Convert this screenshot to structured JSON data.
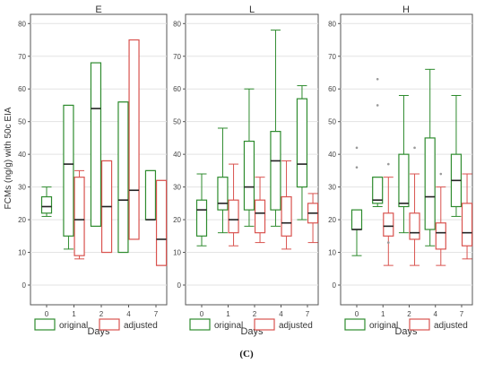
{
  "figure": {
    "caption": "(C)",
    "ylabel": "FCMs (ng/g) with 50c EIA",
    "xlabel": "Days",
    "colors": {
      "original": "#2e8b2e",
      "adjusted": "#d9534f"
    }
  },
  "chart_data": [
    {
      "type": "box",
      "title": "E",
      "xlabel": "Days",
      "ylabel": "FCMs (ng/g) with 50c EIA",
      "categories": [
        "0",
        "1",
        "2",
        "4",
        "7"
      ],
      "ylim": [
        0,
        82
      ],
      "yticks": [
        0,
        10,
        20,
        30,
        40,
        50,
        60,
        70,
        80
      ],
      "legend": [
        "original",
        "adjusted"
      ],
      "series": [
        {
          "name": "original",
          "boxes": [
            {
              "day": "0",
              "whislo": 21,
              "q1": 22,
              "med": 24,
              "q3": 27,
              "whishi": 30,
              "fliers": []
            },
            {
              "day": "1",
              "whislo": 11,
              "q1": 15,
              "med": 37,
              "q3": 55,
              "whishi": 55,
              "fliers": []
            },
            {
              "day": "2",
              "whislo": 18,
              "q1": 18,
              "med": 54,
              "q3": 68,
              "whishi": 68,
              "fliers": []
            },
            {
              "day": "4",
              "whislo": 10,
              "q1": 10,
              "med": 26,
              "q3": 56,
              "whishi": 56,
              "fliers": []
            },
            {
              "day": "7",
              "whislo": 20,
              "q1": 20,
              "med": 20,
              "q3": 35,
              "whishi": 35,
              "fliers": []
            }
          ]
        },
        {
          "name": "adjusted",
          "boxes": [
            {
              "day": "1",
              "whislo": 8,
              "q1": 9,
              "med": 20,
              "q3": 33,
              "whishi": 35,
              "fliers": []
            },
            {
              "day": "2",
              "whislo": 10,
              "q1": 10,
              "med": 24,
              "q3": 38,
              "whishi": 38,
              "fliers": []
            },
            {
              "day": "4",
              "whislo": 14,
              "q1": 14,
              "med": 29,
              "q3": 75,
              "whishi": 75,
              "fliers": []
            },
            {
              "day": "7",
              "whislo": 6,
              "q1": 6,
              "med": 14,
              "q3": 32,
              "whishi": 32,
              "fliers": []
            }
          ]
        }
      ]
    },
    {
      "type": "box",
      "title": "L",
      "xlabel": "Days",
      "categories": [
        "0",
        "1",
        "2",
        "4",
        "7"
      ],
      "ylim": [
        0,
        82
      ],
      "yticks": [
        0,
        10,
        20,
        30,
        40,
        50,
        60,
        70,
        80
      ],
      "legend": [
        "original",
        "adjusted"
      ],
      "series": [
        {
          "name": "original",
          "boxes": [
            {
              "day": "0",
              "whislo": 12,
              "q1": 15,
              "med": 23,
              "q3": 26,
              "whishi": 34,
              "fliers": []
            },
            {
              "day": "1",
              "whislo": 16,
              "q1": 23,
              "med": 25,
              "q3": 33,
              "whishi": 48,
              "fliers": []
            },
            {
              "day": "2",
              "whislo": 18,
              "q1": 23,
              "med": 30,
              "q3": 44,
              "whishi": 60,
              "fliers": []
            },
            {
              "day": "4",
              "whislo": 18,
              "q1": 23,
              "med": 38,
              "q3": 47,
              "whishi": 78,
              "fliers": []
            },
            {
              "day": "7",
              "whislo": 20,
              "q1": 30,
              "med": 37,
              "q3": 57,
              "whishi": 61,
              "fliers": []
            }
          ]
        },
        {
          "name": "adjusted",
          "boxes": [
            {
              "day": "1",
              "whislo": 12,
              "q1": 16,
              "med": 20,
              "q3": 26,
              "whishi": 37,
              "fliers": []
            },
            {
              "day": "2",
              "whislo": 13,
              "q1": 16,
              "med": 22,
              "q3": 26,
              "whishi": 33,
              "fliers": []
            },
            {
              "day": "4",
              "whislo": 11,
              "q1": 15,
              "med": 19,
              "q3": 27,
              "whishi": 38,
              "fliers": []
            },
            {
              "day": "7",
              "whislo": 13,
              "q1": 19,
              "med": 22,
              "q3": 25,
              "whishi": 28,
              "fliers": []
            }
          ]
        }
      ]
    },
    {
      "type": "box",
      "title": "H",
      "xlabel": "Days",
      "categories": [
        "0",
        "1",
        "2",
        "4",
        "7"
      ],
      "ylim": [
        0,
        82
      ],
      "yticks": [
        0,
        10,
        20,
        30,
        40,
        50,
        60,
        70,
        80
      ],
      "legend": [
        "original",
        "adjusted"
      ],
      "series": [
        {
          "name": "original",
          "boxes": [
            {
              "day": "0",
              "whislo": 9,
              "q1": 17,
              "med": 17,
              "q3": 23,
              "whishi": 23,
              "fliers": [
                36,
                42
              ]
            },
            {
              "day": "1",
              "whislo": 24,
              "q1": 25,
              "med": 26,
              "q3": 33,
              "whishi": 33,
              "fliers": [
                55,
                63
              ]
            },
            {
              "day": "2",
              "whislo": 16,
              "q1": 24,
              "med": 25,
              "q3": 40,
              "whishi": 58,
              "fliers": []
            },
            {
              "day": "4",
              "whislo": 12,
              "q1": 17,
              "med": 27,
              "q3": 45,
              "whishi": 66,
              "fliers": []
            },
            {
              "day": "7",
              "whislo": 21,
              "q1": 24,
              "med": 32,
              "q3": 40,
              "whishi": 58,
              "fliers": []
            }
          ]
        },
        {
          "name": "adjusted",
          "boxes": [
            {
              "day": "1",
              "whislo": 6,
              "q1": 15,
              "med": 18,
              "q3": 22,
              "whishi": 33,
              "fliers": [
                37,
                13
              ]
            },
            {
              "day": "2",
              "whislo": 6,
              "q1": 14,
              "med": 16,
              "q3": 22,
              "whishi": 34,
              "fliers": [
                42
              ]
            },
            {
              "day": "4",
              "whislo": 6,
              "q1": 11,
              "med": 16,
              "q3": 19,
              "whishi": 30,
              "fliers": [
                34
              ]
            },
            {
              "day": "7",
              "whislo": 8,
              "q1": 12,
              "med": 16,
              "q3": 25,
              "whishi": 34,
              "fliers": []
            }
          ]
        }
      ]
    }
  ]
}
